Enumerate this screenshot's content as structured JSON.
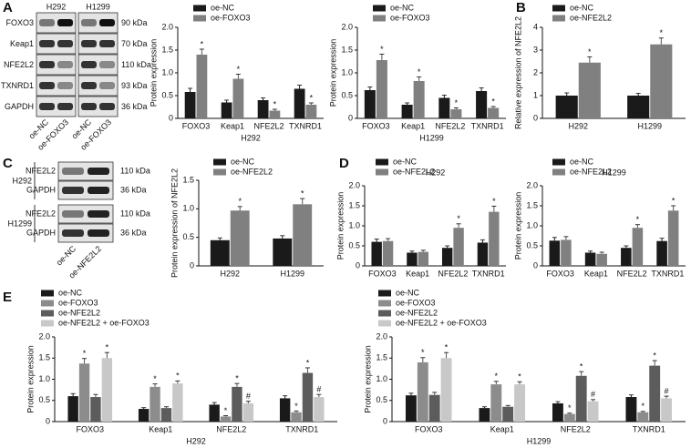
{
  "panel_labels": [
    "A",
    "B",
    "C",
    "D",
    "E"
  ],
  "blots": [
    {
      "columns": [
        "H292",
        "H1299"
      ],
      "rows": [
        {
          "protein": "FOXO3",
          "size": "90 kDa"
        },
        {
          "protein": "Keap1",
          "size": "70 kDa"
        },
        {
          "protein": "NFE2L2",
          "size": "110 kDa"
        },
        {
          "protein": "TXNRD1",
          "size": "93 kDa"
        },
        {
          "protein": "GAPDH",
          "size": "36 kDa"
        }
      ],
      "lanes": [
        "oe-NC",
        "oe-FOXO3",
        "oe-NC",
        "oe-FOXO3"
      ]
    },
    {
      "groups": [
        {
          "name": "H292",
          "rows": [
            {
              "protein": "NFE2L2",
              "size": "110 kDa"
            },
            {
              "protein": "GAPDH",
              "size": "36 kDa"
            }
          ]
        },
        {
          "name": "H1299",
          "rows": [
            {
              "protein": "NFE2L2",
              "size": "110 kDa"
            },
            {
              "protein": "GAPDH",
              "size": "36 kDa"
            }
          ]
        }
      ],
      "lanes": [
        "oe-NC",
        "oe-NFE2L2"
      ]
    }
  ],
  "chart_data": [
    {
      "type": "bar",
      "xlabel": "H292",
      "ylabel": "Protein expression",
      "categories": [
        "FOXO3",
        "Keap1",
        "NFE2L2",
        "TXNRD1"
      ],
      "series": [
        {
          "name": "oe-NC",
          "color": "#1a1a1a",
          "values": [
            0.58,
            0.35,
            0.4,
            0.65
          ],
          "errors": [
            0.08,
            0.05,
            0.05,
            0.08
          ],
          "marks": [
            null,
            null,
            null,
            null
          ]
        },
        {
          "name": "oe-FOXO3",
          "color": "#808080",
          "values": [
            1.4,
            0.87,
            0.17,
            0.3
          ],
          "errors": [
            0.12,
            0.1,
            0.03,
            0.04
          ],
          "marks": [
            "*",
            "*",
            "*",
            "*"
          ]
        }
      ],
      "ylim": [
        0,
        2
      ],
      "yticks": [
        0,
        0.5,
        {
          "value": 1,
          "label": "1.0"
        },
        1.5,
        {
          "value": 2,
          "label": "2.0"
        }
      ]
    },
    {
      "type": "bar",
      "xlabel": "H1299",
      "ylabel": "Protein expression",
      "categories": [
        "FOXO3",
        "Keap1",
        "NFE2L2",
        "TXNRD1"
      ],
      "series": [
        {
          "name": "oe-NC",
          "color": "#1a1a1a",
          "values": [
            0.62,
            0.3,
            0.45,
            0.6
          ],
          "errors": [
            0.07,
            0.04,
            0.06,
            0.07
          ],
          "marks": [
            null,
            null,
            null,
            null
          ]
        },
        {
          "name": "oe-FOXO3",
          "color": "#808080",
          "values": [
            1.28,
            0.82,
            0.2,
            0.23
          ],
          "errors": [
            0.13,
            0.09,
            0.03,
            0.03
          ],
          "marks": [
            "*",
            "*",
            "*",
            "*"
          ]
        }
      ],
      "ylim": [
        0,
        2
      ],
      "yticks": [
        0,
        0.5,
        {
          "value": 1,
          "label": "1.0"
        },
        1.5,
        {
          "value": 2,
          "label": "2.0"
        }
      ]
    },
    {
      "type": "bar",
      "ylabel": "Relative expression of NFE2L2",
      "categories": [
        "H292",
        "H1299"
      ],
      "series": [
        {
          "name": "oe-NC",
          "color": "#1a1a1a",
          "values": [
            1.0,
            1.0
          ],
          "errors": [
            0.12,
            0.1
          ],
          "marks": [
            null,
            null
          ]
        },
        {
          "name": "oe-NFE2L2",
          "color": "#808080",
          "values": [
            2.45,
            3.25
          ],
          "errors": [
            0.25,
            0.28
          ],
          "marks": [
            "*",
            "*"
          ]
        }
      ],
      "ylim": [
        0,
        4
      ],
      "yticks": [
        0,
        1,
        2,
        3,
        4
      ]
    },
    {
      "type": "bar",
      "ylabel": "Protein expression of NFE2L2",
      "categories": [
        "H292",
        "H1299"
      ],
      "series": [
        {
          "name": "oe-NC",
          "color": "#1a1a1a",
          "values": [
            0.45,
            0.48
          ],
          "errors": [
            0.04,
            0.05
          ],
          "marks": [
            null,
            null
          ]
        },
        {
          "name": "oe-NFE2L2",
          "color": "#808080",
          "values": [
            0.97,
            1.08
          ],
          "errors": [
            0.07,
            0.1
          ],
          "marks": [
            "*",
            "*"
          ]
        }
      ],
      "ylim": [
        0,
        1.5
      ],
      "yticks": [
        0,
        0.5,
        {
          "value": 1,
          "label": "1.0"
        },
        1.5
      ]
    },
    {
      "type": "bar",
      "title": "H292",
      "ylabel": "Protein expression",
      "categories": [
        "FOXO3",
        "Keap1",
        "NFE2L2",
        "TXNRD1"
      ],
      "series": [
        {
          "name": "oe-NC",
          "color": "#1a1a1a",
          "values": [
            0.6,
            0.33,
            0.45,
            0.58
          ],
          "errors": [
            0.07,
            0.04,
            0.05,
            0.07
          ],
          "marks": [
            null,
            null,
            null,
            null
          ]
        },
        {
          "name": "oe-NFE2L2",
          "color": "#808080",
          "values": [
            0.62,
            0.35,
            0.95,
            1.35
          ],
          "errors": [
            0.06,
            0.04,
            0.1,
            0.14
          ],
          "marks": [
            null,
            null,
            "*",
            "*"
          ]
        }
      ],
      "ylim": [
        0,
        2
      ],
      "yticks": [
        0,
        0.5,
        {
          "value": 1,
          "label": "1.0"
        },
        1.5,
        {
          "value": 2,
          "label": "2.0"
        }
      ]
    },
    {
      "type": "bar",
      "title": "H1299",
      "ylabel": "Protein expression",
      "categories": [
        "FOXO3",
        "Keap1",
        "NFE2L2",
        "TXNRD1"
      ],
      "series": [
        {
          "name": "oe-NC",
          "color": "#1a1a1a",
          "values": [
            0.63,
            0.33,
            0.45,
            0.62
          ],
          "errors": [
            0.08,
            0.04,
            0.05,
            0.07
          ],
          "marks": [
            null,
            null,
            null,
            null
          ]
        },
        {
          "name": "oe-NFE2L2",
          "color": "#808080",
          "values": [
            0.65,
            0.3,
            0.95,
            1.38
          ],
          "errors": [
            0.08,
            0.04,
            0.08,
            0.12
          ],
          "marks": [
            null,
            null,
            "*",
            "*"
          ]
        }
      ],
      "ylim": [
        0,
        2
      ],
      "yticks": [
        0,
        0.5,
        {
          "value": 1,
          "label": "1.0"
        },
        1.5,
        {
          "value": 2,
          "label": "2.0"
        }
      ]
    },
    {
      "type": "bar",
      "xlabel": "H292",
      "ylabel": "Protein expression",
      "categories": [
        "FOXO3",
        "Keap1",
        "NFE2L2",
        "TXNRD1"
      ],
      "series": [
        {
          "name": "oe-NC",
          "color": "#1a1a1a",
          "values": [
            0.6,
            0.3,
            0.4,
            0.55
          ],
          "errors": [
            0.06,
            0.03,
            0.05,
            0.06
          ],
          "marks": [
            null,
            null,
            null,
            null
          ]
        },
        {
          "name": "oe-FOXO3",
          "color": "#8c8c8c",
          "values": [
            1.37,
            0.82,
            0.12,
            0.22
          ],
          "errors": [
            0.12,
            0.07,
            0.02,
            0.03
          ],
          "marks": [
            "*",
            "*",
            "*",
            "*"
          ]
        },
        {
          "name": "oe-NFE2L2",
          "color": "#5c5c5c",
          "values": [
            0.58,
            0.32,
            0.82,
            1.15
          ],
          "errors": [
            0.06,
            0.03,
            0.08,
            0.12
          ],
          "marks": [
            null,
            null,
            "*",
            "*"
          ]
        },
        {
          "name": "oe-NFE2L2 + oe-FOXO3",
          "color": "#c8c8c8",
          "values": [
            1.5,
            0.9,
            0.43,
            0.58
          ],
          "errors": [
            0.13,
            0.06,
            0.05,
            0.06
          ],
          "marks": [
            "*",
            "*",
            "#",
            "#"
          ]
        }
      ],
      "ylim": [
        0,
        2
      ],
      "yticks": [
        0,
        0.5,
        {
          "value": 1,
          "label": "1.0"
        },
        1.5,
        {
          "value": 2,
          "label": "2.0"
        }
      ]
    },
    {
      "type": "bar",
      "xlabel": "H1299",
      "ylabel": "Protein expression",
      "categories": [
        "FOXO3",
        "Keap1",
        "NFE2L2",
        "TXNRD1"
      ],
      "series": [
        {
          "name": "oe-NC",
          "color": "#1a1a1a",
          "values": [
            0.62,
            0.32,
            0.43,
            0.58
          ],
          "errors": [
            0.05,
            0.03,
            0.04,
            0.05
          ],
          "marks": [
            null,
            null,
            null,
            null
          ]
        },
        {
          "name": "oe-FOXO3",
          "color": "#8c8c8c",
          "values": [
            1.4,
            0.88,
            0.18,
            0.22
          ],
          "errors": [
            0.11,
            0.07,
            0.02,
            0.02
          ],
          "marks": [
            "*",
            "*",
            "*",
            "*"
          ]
        },
        {
          "name": "oe-NFE2L2",
          "color": "#5c5c5c",
          "values": [
            0.63,
            0.35,
            1.08,
            1.32
          ],
          "errors": [
            0.06,
            0.03,
            0.1,
            0.12
          ],
          "marks": [
            null,
            null,
            "*",
            "*"
          ]
        },
        {
          "name": "oe-NFE2L2 + oe-FOXO3",
          "color": "#c8c8c8",
          "values": [
            1.5,
            0.88,
            0.48,
            0.55
          ],
          "errors": [
            0.13,
            0.06,
            0.04,
            0.05
          ],
          "marks": [
            "*",
            "*",
            "#",
            "#"
          ]
        }
      ],
      "ylim": [
        0,
        2
      ],
      "yticks": [
        0,
        0.5,
        {
          "value": 1,
          "label": "1.0"
        },
        1.5,
        {
          "value": 2,
          "label": "2.0"
        }
      ]
    }
  ]
}
